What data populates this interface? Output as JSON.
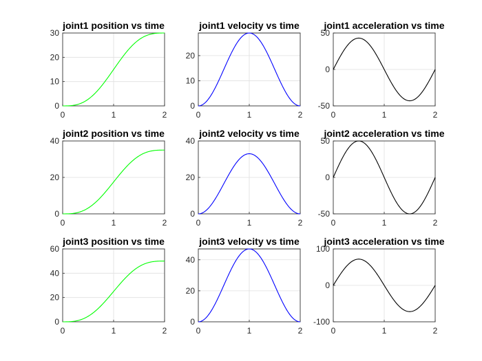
{
  "chart_data": [
    {
      "type": "line",
      "title": "joint1 position vs time",
      "kind": "pos",
      "peak": 30,
      "color": "#00ff00",
      "xlim": [
        0,
        2
      ],
      "ylim": [
        0,
        30
      ],
      "xticks": [
        "0",
        "1",
        "2"
      ],
      "yticks": [
        "0",
        "10",
        "20",
        "30"
      ],
      "x": [
        0,
        0.25,
        0.5,
        0.75,
        1,
        1.25,
        1.5,
        1.75,
        2
      ],
      "y": [
        0,
        1.1,
        4.8,
        10.4,
        15,
        20.5,
        25.2,
        28.9,
        30
      ]
    },
    {
      "type": "line",
      "title": "joint1 velocity vs time",
      "kind": "vel",
      "peak": 29,
      "color": "#0000ff",
      "xlim": [
        0,
        2
      ],
      "ylim": [
        0,
        29
      ],
      "xticks": [
        "0",
        "1",
        "2"
      ],
      "yticks": [
        "0",
        "10",
        "20"
      ],
      "x": [
        0,
        0.25,
        0.5,
        0.75,
        1,
        1.25,
        1.5,
        1.75,
        2
      ],
      "y": [
        0,
        4.2,
        14.5,
        24.8,
        29,
        24.8,
        14.5,
        4.2,
        0
      ]
    },
    {
      "type": "line",
      "title": "joint1 acceleration vs time",
      "kind": "acc",
      "peak": 43,
      "color": "#000000",
      "xlim": [
        0,
        2
      ],
      "ylim": [
        -50,
        50
      ],
      "xticks": [
        "0",
        "1",
        "2"
      ],
      "yticks": [
        "-50",
        "0",
        "50"
      ],
      "x": [
        0,
        0.42,
        1,
        1.58,
        2
      ],
      "y": [
        0,
        43,
        0,
        -43,
        0
      ]
    },
    {
      "type": "line",
      "title": "joint2 position vs time",
      "kind": "pos",
      "peak": 35,
      "color": "#00ff00",
      "xlim": [
        0,
        2
      ],
      "ylim": [
        0,
        40
      ],
      "xticks": [
        "0",
        "1",
        "2"
      ],
      "yticks": [
        "0",
        "20",
        "40"
      ],
      "x": [
        0,
        0.25,
        0.5,
        0.75,
        1,
        1.25,
        1.5,
        1.75,
        2
      ],
      "y": [
        0,
        1.3,
        5.6,
        12.2,
        17.5,
        23.9,
        29.4,
        33.7,
        35
      ]
    },
    {
      "type": "line",
      "title": "joint2 velocity vs time",
      "kind": "vel",
      "peak": 33,
      "color": "#0000ff",
      "xlim": [
        0,
        2
      ],
      "ylim": [
        0,
        40
      ],
      "xticks": [
        "0",
        "1",
        "2"
      ],
      "yticks": [
        "0",
        "20",
        "40"
      ],
      "x": [
        0,
        0.25,
        0.5,
        0.75,
        1,
        1.25,
        1.5,
        1.75,
        2
      ],
      "y": [
        0,
        4.8,
        16.5,
        28.2,
        33,
        28.2,
        16.5,
        4.8,
        0
      ]
    },
    {
      "type": "line",
      "title": "joint2 acceleration vs time",
      "kind": "acc",
      "peak": 50,
      "color": "#000000",
      "xlim": [
        0,
        2
      ],
      "ylim": [
        -50,
        50
      ],
      "xticks": [
        "0",
        "1",
        "2"
      ],
      "yticks": [
        "-50",
        "0",
        "50"
      ],
      "x": [
        0,
        0.42,
        1,
        1.58,
        2
      ],
      "y": [
        0,
        50,
        0,
        -50,
        0
      ]
    },
    {
      "type": "line",
      "title": "joint3 position vs time",
      "kind": "pos",
      "peak": 50,
      "color": "#00ff00",
      "xlim": [
        0,
        2
      ],
      "ylim": [
        0,
        60
      ],
      "xticks": [
        "0",
        "1",
        "2"
      ],
      "yticks": [
        "0",
        "20",
        "40",
        "60"
      ],
      "x": [
        0,
        0.25,
        0.5,
        0.75,
        1,
        1.25,
        1.5,
        1.75,
        2
      ],
      "y": [
        0,
        1.8,
        8,
        17.4,
        25,
        34.1,
        42,
        48.1,
        50
      ]
    },
    {
      "type": "line",
      "title": "joint3 velocity vs time",
      "kind": "vel",
      "peak": 47,
      "color": "#0000ff",
      "xlim": [
        0,
        2
      ],
      "ylim": [
        0,
        47
      ],
      "xticks": [
        "0",
        "1",
        "2"
      ],
      "yticks": [
        "0",
        "20",
        "40"
      ],
      "x": [
        0,
        0.25,
        0.5,
        0.75,
        1,
        1.25,
        1.5,
        1.75,
        2
      ],
      "y": [
        0,
        6.9,
        23.5,
        40.1,
        47,
        40.1,
        23.5,
        6.9,
        0
      ]
    },
    {
      "type": "line",
      "title": "joint3 acceleration vs time",
      "kind": "acc",
      "peak": 72,
      "color": "#000000",
      "xlim": [
        0,
        2
      ],
      "ylim": [
        -100,
        100
      ],
      "xticks": [
        "0",
        "1",
        "2"
      ],
      "yticks": [
        "-100",
        "0",
        "100"
      ],
      "x": [
        0,
        0.42,
        1,
        1.58,
        2
      ],
      "y": [
        0,
        72,
        0,
        -72,
        0
      ]
    }
  ]
}
